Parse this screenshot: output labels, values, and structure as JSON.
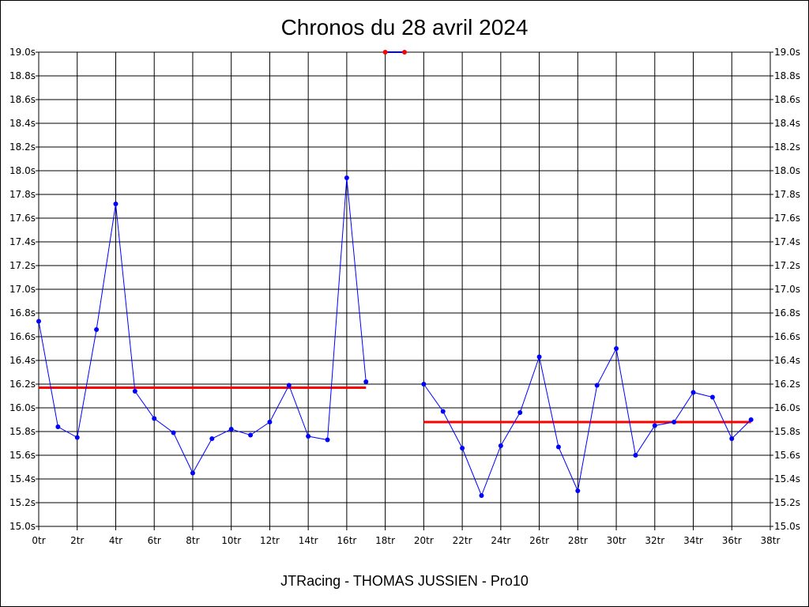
{
  "chart_data": {
    "type": "line",
    "title": "Chronos du 28 avril 2024",
    "caption": "JTRacing - THOMAS JUSSIEN - Pro10",
    "xlim": [
      0,
      38
    ],
    "ylim": [
      15.0,
      19.0
    ],
    "grid": true,
    "x_ticks": [
      "0tr",
      "2tr",
      "4tr",
      "6tr",
      "8tr",
      "10tr",
      "12tr",
      "14tr",
      "16tr",
      "18tr",
      "20tr",
      "22tr",
      "24tr",
      "26tr",
      "28tr",
      "30tr",
      "32tr",
      "34tr",
      "36tr",
      "38tr"
    ],
    "y_ticks": [
      "15.0s",
      "15.2s",
      "15.4s",
      "15.6s",
      "15.8s",
      "16.0s",
      "16.2s",
      "16.4s",
      "16.6s",
      "16.8s",
      "17.0s",
      "17.2s",
      "17.4s",
      "17.6s",
      "17.8s",
      "18.0s",
      "18.2s",
      "18.4s",
      "18.6s",
      "18.8s",
      "19.0s"
    ],
    "series": [
      {
        "color": "#0000ff",
        "points": [
          [
            0,
            16.73
          ],
          [
            1,
            15.84
          ],
          [
            2,
            15.75
          ],
          [
            3,
            16.66
          ],
          [
            4,
            17.72
          ],
          [
            5,
            16.14
          ],
          [
            6,
            15.91
          ],
          [
            7,
            15.79
          ],
          [
            8,
            15.45
          ],
          [
            9,
            15.74
          ],
          [
            10,
            15.82
          ],
          [
            11,
            15.77
          ],
          [
            12,
            15.88
          ],
          [
            13,
            16.19
          ],
          [
            14,
            15.76
          ],
          [
            15,
            15.73
          ],
          [
            16,
            17.94
          ],
          [
            17,
            16.22
          ]
        ]
      },
      {
        "color": "#0000ff",
        "points": [
          [
            20,
            16.2
          ],
          [
            21,
            15.97
          ],
          [
            22,
            15.66
          ],
          [
            23,
            15.26
          ],
          [
            24,
            15.68
          ],
          [
            25,
            15.96
          ],
          [
            26,
            16.43
          ],
          [
            27,
            15.67
          ],
          [
            28,
            15.3
          ],
          [
            29,
            16.19
          ],
          [
            30,
            16.5
          ],
          [
            31,
            15.6
          ],
          [
            32,
            15.85
          ],
          [
            33,
            15.88
          ],
          [
            34,
            16.13
          ],
          [
            35,
            16.09
          ],
          [
            36,
            15.74
          ],
          [
            37,
            15.9
          ]
        ]
      },
      {
        "color": "#0000ff",
        "marker_color": "#ff0000",
        "points": [
          [
            18,
            19.0
          ],
          [
            19,
            19.0
          ]
        ]
      }
    ],
    "average_lines": [
      {
        "x": [
          0,
          17
        ],
        "y": 16.17,
        "color": "#ff0000"
      },
      {
        "x": [
          20,
          37
        ],
        "y": 15.88,
        "color": "#ff0000"
      }
    ]
  }
}
